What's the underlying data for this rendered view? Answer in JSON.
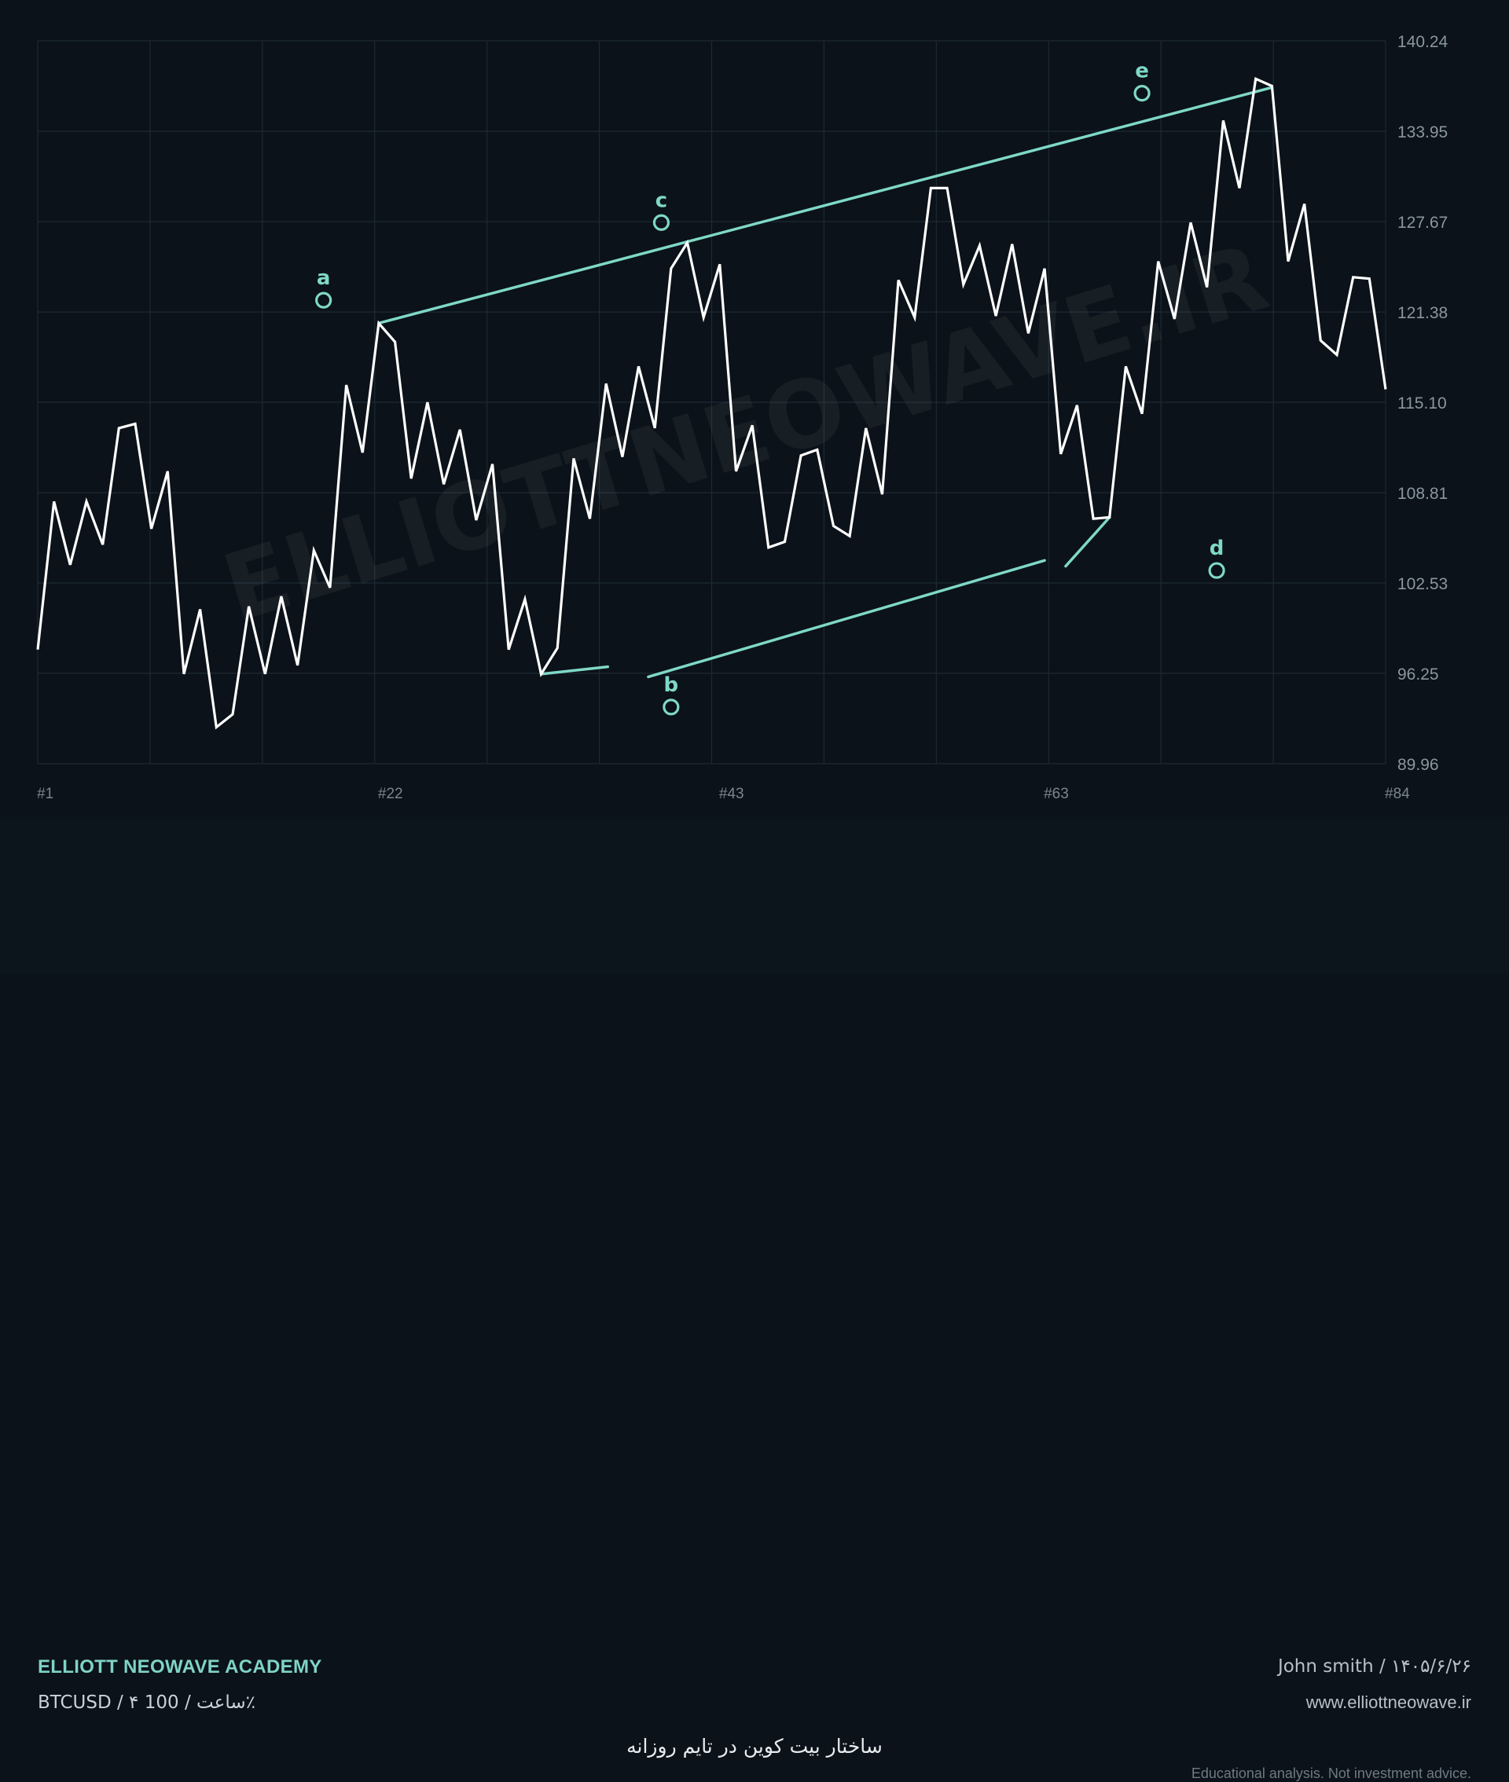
{
  "chart_data": {
    "type": "line",
    "watermark": "ELLIOTTNEOWAVE.IR",
    "ylim": [
      89.96,
      140.24
    ],
    "y_ticks": [
      "140.24",
      "133.95",
      "127.67",
      "121.38",
      "115.10",
      "108.81",
      "102.53",
      "96.25",
      "89.96"
    ],
    "x_ticks": [
      {
        "label": "#1",
        "x": 1
      },
      {
        "label": "#22",
        "x": 22
      },
      {
        "label": "#43",
        "x": 43
      },
      {
        "label": "#63",
        "x": 63
      },
      {
        "label": "#84",
        "x": 84
      }
    ],
    "series": [
      {
        "color": "#ffffff",
        "points": [
          [
            1,
            97.9
          ],
          [
            2,
            108.2
          ],
          [
            3,
            103.8
          ],
          [
            4,
            108.2
          ],
          [
            5,
            105.2
          ],
          [
            6,
            113.3
          ],
          [
            7,
            113.6
          ],
          [
            8,
            106.3
          ],
          [
            9,
            110.3
          ],
          [
            10,
            96.2
          ],
          [
            11,
            100.7
          ],
          [
            12,
            92.5
          ],
          [
            13,
            93.4
          ],
          [
            14,
            100.9
          ],
          [
            15,
            96.2
          ],
          [
            16,
            101.6
          ],
          [
            17,
            96.8
          ],
          [
            18,
            104.8
          ],
          [
            19,
            102.2
          ],
          [
            20,
            116.3
          ],
          [
            21,
            111.6
          ],
          [
            22,
            120.6
          ],
          [
            23,
            119.3
          ],
          [
            24,
            109.8
          ],
          [
            25,
            115.1
          ],
          [
            26,
            109.4
          ],
          [
            27,
            113.2
          ],
          [
            28,
            106.9
          ],
          [
            29,
            110.8
          ],
          [
            30,
            97.9
          ],
          [
            31,
            101.4
          ],
          [
            32,
            96.2
          ],
          [
            33,
            98.0
          ],
          [
            34,
            111.2
          ],
          [
            35,
            107.0
          ],
          [
            36,
            116.4
          ],
          [
            37,
            111.3
          ],
          [
            38,
            117.6
          ],
          [
            39,
            113.3
          ],
          [
            40,
            124.4
          ],
          [
            41,
            126.2
          ],
          [
            42,
            121.0
          ],
          [
            43,
            124.7
          ],
          [
            44,
            110.3
          ],
          [
            45,
            113.5
          ],
          [
            46,
            105.0
          ],
          [
            47,
            105.4
          ],
          [
            48,
            111.4
          ],
          [
            49,
            111.8
          ],
          [
            50,
            106.5
          ],
          [
            51,
            105.8
          ],
          [
            52,
            113.3
          ],
          [
            53,
            108.7
          ],
          [
            54,
            123.6
          ],
          [
            55,
            121.0
          ],
          [
            56,
            130.0
          ],
          [
            57,
            130.0
          ],
          [
            58,
            123.3
          ],
          [
            59,
            126.0
          ],
          [
            60,
            121.1
          ],
          [
            61,
            126.1
          ],
          [
            62,
            119.9
          ],
          [
            63,
            124.4
          ],
          [
            64,
            111.5
          ],
          [
            65,
            114.9
          ],
          [
            66,
            107.0
          ],
          [
            67,
            107.1
          ],
          [
            68,
            117.6
          ],
          [
            69,
            114.3
          ],
          [
            70,
            124.9
          ],
          [
            71,
            120.9
          ],
          [
            72,
            127.6
          ],
          [
            73,
            123.1
          ],
          [
            74,
            134.7
          ],
          [
            75,
            130.0
          ],
          [
            76,
            137.6
          ],
          [
            77,
            137.1
          ],
          [
            78,
            124.9
          ],
          [
            79,
            128.9
          ],
          [
            80,
            119.4
          ],
          [
            81,
            118.4
          ],
          [
            82,
            123.8
          ],
          [
            83,
            123.7
          ],
          [
            84,
            116.0
          ]
        ]
      }
    ],
    "channel_lines": [
      {
        "from": [
          22,
          120.6
        ],
        "to": [
          77.0,
          137.0
        ]
      },
      {
        "from": [
          32,
          96.2
        ],
        "to": [
          36.1,
          96.7
        ]
      },
      {
        "from": [
          38.6,
          96.0
        ],
        "to": [
          63.0,
          104.1
        ]
      },
      {
        "from": [
          64.3,
          103.7
        ],
        "to": [
          67.0,
          107.1
        ]
      }
    ],
    "annotations": [
      {
        "label": "a",
        "x": 18.6,
        "y": 122.2
      },
      {
        "label": "c",
        "x": 39.4,
        "y": 127.6
      },
      {
        "label": "b",
        "x": 40.0,
        "y": 93.9
      },
      {
        "label": "e",
        "x": 69.0,
        "y": 136.6
      },
      {
        "label": "d",
        "x": 73.6,
        "y": 103.4
      }
    ],
    "line_color": "#ffffff",
    "accent_color": "#7fd8c8",
    "grid": true
  },
  "footer": {
    "brand": "ELLIOTT NEOWAVE ACADEMY",
    "symbol": "BTCUSD / ۴ ساعت / 100٪",
    "author": "John smith / ۱۴۰۵/۶/۲۶",
    "website": "www.elliottneowave.ir",
    "caption": "ساختار بیت کوین در تایم روزانه",
    "disclaimer": "Educational analysis. Not investment advice."
  }
}
